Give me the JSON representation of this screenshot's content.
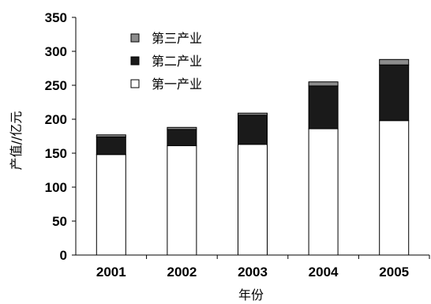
{
  "chart_data": {
    "type": "bar",
    "stacked": true,
    "title": "",
    "xlabel": "年份",
    "ylabel": "产值//亿元",
    "categories": [
      "2001",
      "2002",
      "2003",
      "2004",
      "2005"
    ],
    "series": [
      {
        "name": "第一产业",
        "color": "#ffffff",
        "values": [
          148,
          161,
          163,
          186,
          198
        ]
      },
      {
        "name": "第二产业",
        "color": "#1a1a1a",
        "values": [
          26,
          24,
          43,
          63,
          82
        ]
      },
      {
        "name": "第三产业",
        "color": "#8c8c8c",
        "values": [
          3,
          3,
          3,
          6,
          8
        ]
      }
    ],
    "ylim": [
      0,
      350
    ],
    "yticks": [
      0,
      50,
      100,
      150,
      200,
      250,
      300,
      350
    ],
    "grid": false,
    "legend": {
      "placement": "top-left",
      "entries": [
        {
          "label": "第三产业",
          "color": "#8c8c8c"
        },
        {
          "label": "第二产业",
          "color": "#1a1a1a"
        },
        {
          "label": "第一产业",
          "color": "#ffffff"
        }
      ]
    }
  }
}
